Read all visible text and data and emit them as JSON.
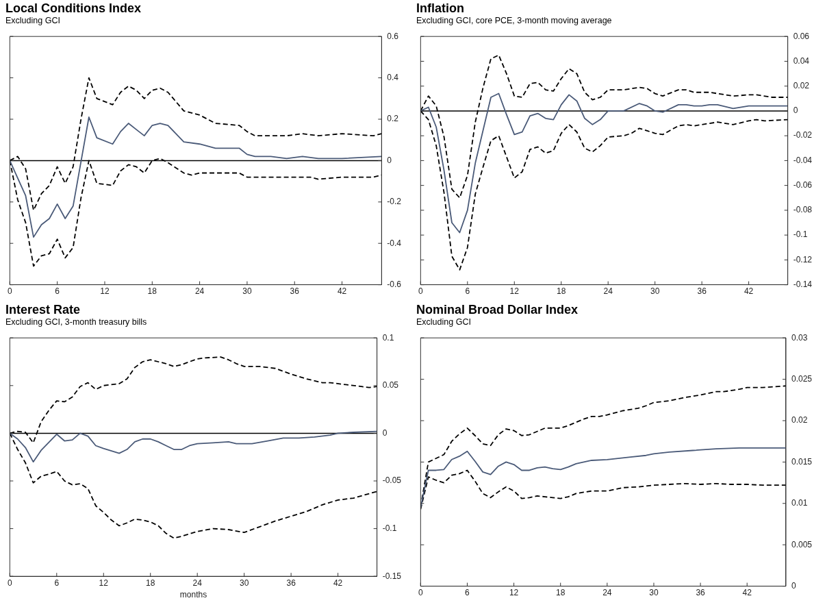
{
  "chart_data": [
    {
      "type": "line",
      "title": "Local Conditions Index",
      "subtitle": "Excluding GCI",
      "marker": "none",
      "xlim": [
        0,
        47
      ],
      "xticks": [
        0,
        6,
        12,
        18,
        24,
        30,
        36,
        42
      ],
      "ylim": [
        -0.6,
        0.6
      ],
      "yticks": [
        -0.6,
        -0.4,
        -0.2,
        0,
        0.2,
        0.4,
        0.6
      ],
      "ref_lines": [
        {
          "axis": "y",
          "value": 0,
          "color": "#000000"
        }
      ],
      "series": [
        {
          "color": "#4a5a78",
          "line_style": "solid",
          "x": [
            0,
            2,
            3,
            4,
            5,
            6,
            7,
            8,
            10,
            11,
            13,
            14,
            15,
            16,
            17,
            18,
            19,
            20,
            21,
            22,
            24,
            26,
            29,
            30,
            31,
            33,
            35,
            37,
            39,
            42,
            47
          ],
          "values": [
            0,
            -0.17,
            -0.37,
            -0.31,
            -0.28,
            -0.21,
            -0.28,
            -0.22,
            0.21,
            0.11,
            0.08,
            0.14,
            0.18,
            0.15,
            0.12,
            0.17,
            0.18,
            0.17,
            0.13,
            0.09,
            0.08,
            0.06,
            0.06,
            0.03,
            0.02,
            0.02,
            0.01,
            0.02,
            0.01,
            0.01,
            0.02
          ]
        },
        {
          "color": "#000000",
          "line_style": "dashed",
          "x": [
            0,
            1,
            2,
            3,
            4,
            5,
            6,
            7,
            8,
            9,
            10,
            11,
            13,
            14,
            15,
            16,
            17,
            18,
            19,
            20,
            22,
            24,
            26,
            29,
            30,
            31,
            35,
            37,
            39,
            42,
            46,
            47
          ],
          "values": [
            0,
            0.02,
            -0.04,
            -0.24,
            -0.16,
            -0.12,
            -0.03,
            -0.11,
            -0.03,
            0.2,
            0.4,
            0.3,
            0.27,
            0.33,
            0.36,
            0.34,
            0.3,
            0.34,
            0.35,
            0.33,
            0.24,
            0.22,
            0.18,
            0.17,
            0.14,
            0.12,
            0.12,
            0.13,
            0.12,
            0.13,
            0.12,
            0.13
          ]
        },
        {
          "color": "#000000",
          "line_style": "dashed",
          "x": [
            0,
            1,
            2,
            3,
            4,
            5,
            6,
            7,
            8,
            9,
            10,
            11,
            13,
            14,
            15,
            16,
            17,
            18,
            19,
            20,
            22,
            23,
            24,
            26,
            28,
            29,
            30,
            31,
            33,
            36,
            38,
            39,
            42,
            46,
            47
          ],
          "values": [
            0,
            -0.19,
            -0.3,
            -0.51,
            -0.46,
            -0.45,
            -0.38,
            -0.47,
            -0.42,
            -0.18,
            0,
            -0.11,
            -0.12,
            -0.05,
            -0.02,
            -0.03,
            -0.06,
            0,
            0.01,
            -0.01,
            -0.06,
            -0.07,
            -0.06,
            -0.06,
            -0.06,
            -0.06,
            -0.08,
            -0.08,
            -0.08,
            -0.08,
            -0.08,
            -0.09,
            -0.08,
            -0.08,
            -0.07
          ]
        }
      ]
    },
    {
      "type": "line",
      "title": "Inflation",
      "subtitle": "Excluding GCI, core PCE, 3-month moving average",
      "marker": "none",
      "xlim": [
        0,
        47
      ],
      "xticks": [
        0,
        6,
        12,
        18,
        24,
        30,
        36,
        42
      ],
      "ylim": [
        -0.14,
        0.06
      ],
      "yticks": [
        -0.14,
        -0.12,
        -0.1,
        -0.08,
        -0.06,
        -0.04,
        -0.02,
        0,
        0.02,
        0.04,
        0.06
      ],
      "ref_lines": [
        {
          "axis": "y",
          "value": 0,
          "color": "#000000"
        }
      ],
      "series": [
        {
          "color": "#4a5a78",
          "line_style": "solid",
          "x": [
            0,
            1,
            2,
            3,
            4,
            5,
            6,
            7,
            9,
            10,
            11,
            12,
            13,
            14,
            15,
            16,
            17,
            18,
            19,
            20,
            21,
            22,
            23,
            24,
            26,
            28,
            29,
            30,
            31,
            33,
            34,
            35,
            36,
            37,
            38,
            40,
            42,
            44,
            47
          ],
          "values": [
            0,
            0.003,
            -0.013,
            -0.048,
            -0.09,
            -0.098,
            -0.08,
            -0.042,
            0.011,
            0.014,
            -0.003,
            -0.019,
            -0.017,
            -0.004,
            -0.002,
            -0.006,
            -0.007,
            0.005,
            0.013,
            0.008,
            -0.006,
            -0.011,
            -0.007,
            0,
            0,
            0.006,
            0.004,
            0,
            -0.001,
            0.005,
            0.005,
            0.004,
            0.004,
            0.005,
            0.005,
            0.002,
            0.004,
            0.004,
            0.004
          ]
        },
        {
          "color": "#000000",
          "line_style": "dashed",
          "x": [
            0,
            1,
            2,
            3,
            4,
            5,
            6,
            7,
            8,
            9,
            10,
            11,
            12,
            13,
            14,
            15,
            16,
            17,
            18,
            19,
            20,
            21,
            22,
            23,
            24,
            26,
            28,
            29,
            30,
            31,
            33,
            34,
            35,
            37,
            38,
            40,
            42,
            43,
            45,
            47
          ],
          "values": [
            0,
            0.012,
            0.004,
            -0.021,
            -0.063,
            -0.07,
            -0.052,
            -0.009,
            0.019,
            0.042,
            0.045,
            0.03,
            0.012,
            0.011,
            0.022,
            0.023,
            0.017,
            0.016,
            0.026,
            0.034,
            0.03,
            0.015,
            0.009,
            0.011,
            0.017,
            0.017,
            0.019,
            0.018,
            0.014,
            0.012,
            0.017,
            0.017,
            0.015,
            0.015,
            0.014,
            0.012,
            0.013,
            0.013,
            0.011,
            0.011
          ]
        },
        {
          "color": "#000000",
          "line_style": "dashed",
          "x": [
            0,
            1,
            2,
            3,
            4,
            5,
            6,
            7,
            8,
            9,
            10,
            11,
            12,
            13,
            14,
            15,
            16,
            17,
            18,
            19,
            20,
            21,
            22,
            23,
            24,
            26,
            27,
            28,
            29,
            30,
            31,
            33,
            34,
            35,
            37,
            38,
            40,
            42,
            43,
            44,
            47
          ],
          "values": [
            0,
            -0.007,
            -0.028,
            -0.066,
            -0.117,
            -0.128,
            -0.11,
            -0.067,
            -0.045,
            -0.024,
            -0.02,
            -0.037,
            -0.054,
            -0.049,
            -0.031,
            -0.029,
            -0.034,
            -0.032,
            -0.018,
            -0.011,
            -0.017,
            -0.03,
            -0.033,
            -0.028,
            -0.021,
            -0.02,
            -0.018,
            -0.014,
            -0.016,
            -0.018,
            -0.019,
            -0.012,
            -0.011,
            -0.012,
            -0.01,
            -0.009,
            -0.011,
            -0.008,
            -0.007,
            -0.008,
            -0.007
          ]
        }
      ]
    },
    {
      "type": "line",
      "title": "Interest Rate",
      "subtitle": "Excluding GCI, 3-month treasury bills",
      "xlabel": "months",
      "marker": "none",
      "xlim": [
        0,
        47
      ],
      "xticks": [
        0,
        6,
        12,
        18,
        24,
        30,
        36,
        42
      ],
      "ylim": [
        -0.15,
        0.1
      ],
      "yticks": [
        -0.15,
        -0.1,
        -0.05,
        0,
        0.05,
        0.1
      ],
      "ref_lines": [
        {
          "axis": "y",
          "value": 0,
          "color": "#000000"
        }
      ],
      "series": [
        {
          "color": "#4a5a78",
          "line_style": "solid",
          "x": [
            0,
            1,
            2,
            3,
            4,
            6,
            7,
            8,
            9,
            10,
            11,
            12,
            14,
            15,
            16,
            17,
            18,
            19,
            20,
            21,
            22,
            23,
            24,
            26,
            28,
            29,
            30,
            31,
            33,
            35,
            37,
            39,
            41,
            42,
            44,
            47
          ],
          "values": [
            0,
            -0.006,
            -0.015,
            -0.03,
            -0.018,
            -0.001,
            -0.008,
            -0.007,
            0,
            -0.003,
            -0.013,
            -0.016,
            -0.021,
            -0.017,
            -0.009,
            -0.006,
            -0.006,
            -0.009,
            -0.013,
            -0.017,
            -0.017,
            -0.013,
            -0.011,
            -0.01,
            -0.009,
            -0.011,
            -0.011,
            -0.011,
            -0.008,
            -0.005,
            -0.005,
            -0.004,
            -0.002,
            0,
            0.001,
            0.002
          ]
        },
        {
          "color": "#000000",
          "line_style": "dashed",
          "x": [
            0,
            1,
            2,
            3,
            4,
            5,
            6,
            7,
            8,
            9,
            10,
            11,
            12,
            14,
            15,
            16,
            17,
            18,
            19,
            20,
            21,
            22,
            24,
            25,
            27,
            28,
            29,
            30,
            32,
            34,
            36,
            38,
            40,
            41,
            43,
            45,
            46,
            47
          ],
          "values": [
            0,
            0.002,
            0.001,
            -0.01,
            0.012,
            0.024,
            0.034,
            0.033,
            0.038,
            0.049,
            0.053,
            0.046,
            0.05,
            0.052,
            0.057,
            0.069,
            0.075,
            0.077,
            0.075,
            0.073,
            0.07,
            0.072,
            0.078,
            0.079,
            0.08,
            0.077,
            0.073,
            0.07,
            0.07,
            0.068,
            0.062,
            0.057,
            0.053,
            0.053,
            0.051,
            0.049,
            0.048,
            0.049
          ]
        },
        {
          "color": "#000000",
          "line_style": "dashed",
          "x": [
            0,
            1,
            2,
            3,
            4,
            5,
            6,
            7,
            8,
            9,
            10,
            11,
            12,
            13,
            14,
            15,
            16,
            17,
            18,
            19,
            20,
            21,
            22,
            24,
            26,
            28,
            30,
            32,
            34,
            36,
            38,
            40,
            42,
            44,
            47
          ],
          "values": [
            0,
            -0.017,
            -0.031,
            -0.052,
            -0.045,
            -0.043,
            -0.04,
            -0.05,
            -0.054,
            -0.053,
            -0.058,
            -0.076,
            -0.083,
            -0.091,
            -0.097,
            -0.094,
            -0.09,
            -0.091,
            -0.093,
            -0.097,
            -0.105,
            -0.11,
            -0.108,
            -0.103,
            -0.1,
            -0.101,
            -0.104,
            -0.098,
            -0.092,
            -0.087,
            -0.082,
            -0.075,
            -0.07,
            -0.068,
            -0.061
          ]
        }
      ]
    },
    {
      "type": "line",
      "title": "Nominal Broad Dollar Index",
      "subtitle": "Excluding GCI",
      "marker": "none",
      "xlim": [
        0,
        47
      ],
      "xticks": [
        0,
        6,
        12,
        18,
        24,
        30,
        36,
        42
      ],
      "ylim": [
        0,
        0.03
      ],
      "yticks": [
        0,
        0.005,
        0.01,
        0.015,
        0.02,
        0.025,
        0.03
      ],
      "series": [
        {
          "color": "#4a5a78",
          "line_style": "solid",
          "x": [
            0,
            1,
            2,
            3,
            4,
            5,
            6,
            7,
            8,
            9,
            10,
            11,
            12,
            13,
            14,
            15,
            16,
            17,
            18,
            19,
            20,
            21,
            22,
            24,
            26,
            27,
            29,
            30,
            32,
            35,
            38,
            41,
            44,
            47
          ],
          "values": [
            0.0095,
            0.014,
            0.014,
            0.0141,
            0.0153,
            0.0157,
            0.0163,
            0.0151,
            0.0138,
            0.0135,
            0.0145,
            0.015,
            0.0147,
            0.014,
            0.014,
            0.0143,
            0.0144,
            0.0142,
            0.0141,
            0.0144,
            0.0148,
            0.015,
            0.0152,
            0.0153,
            0.0155,
            0.0156,
            0.0158,
            0.016,
            0.0162,
            0.0164,
            0.0166,
            0.0167,
            0.0167,
            0.0167
          ]
        },
        {
          "color": "#000000",
          "line_style": "dashed",
          "x": [
            0,
            1,
            3,
            4,
            5,
            6,
            7,
            8,
            9,
            10,
            11,
            12,
            13,
            14,
            15,
            16,
            18,
            19,
            21,
            22,
            23,
            24,
            26,
            28,
            29,
            30,
            32,
            34,
            36,
            38,
            39,
            41,
            42,
            44,
            47
          ],
          "values": [
            0.0096,
            0.015,
            0.0159,
            0.0175,
            0.0184,
            0.0191,
            0.0182,
            0.0172,
            0.017,
            0.0183,
            0.019,
            0.0188,
            0.0182,
            0.0183,
            0.0187,
            0.0191,
            0.0191,
            0.0194,
            0.0202,
            0.0205,
            0.0205,
            0.0207,
            0.0212,
            0.0215,
            0.0218,
            0.0222,
            0.0224,
            0.0228,
            0.0231,
            0.0235,
            0.0235,
            0.0238,
            0.024,
            0.024,
            0.0242
          ]
        },
        {
          "color": "#000000",
          "line_style": "dashed",
          "x": [
            0,
            1,
            2,
            3,
            4,
            5,
            6,
            7,
            8,
            9,
            10,
            11,
            12,
            13,
            14,
            15,
            16,
            17,
            18,
            19,
            20,
            22,
            24,
            26,
            28,
            30,
            32,
            34,
            36,
            38,
            40,
            42,
            44,
            47
          ],
          "values": [
            0.0093,
            0.0132,
            0.0128,
            0.0125,
            0.0134,
            0.0136,
            0.014,
            0.0127,
            0.0112,
            0.0107,
            0.0114,
            0.012,
            0.0115,
            0.0106,
            0.0107,
            0.0109,
            0.0108,
            0.0107,
            0.0106,
            0.0108,
            0.0112,
            0.0115,
            0.0115,
            0.0119,
            0.012,
            0.0122,
            0.0123,
            0.0124,
            0.0123,
            0.0124,
            0.0123,
            0.0123,
            0.0122,
            0.0122
          ]
        }
      ]
    }
  ]
}
